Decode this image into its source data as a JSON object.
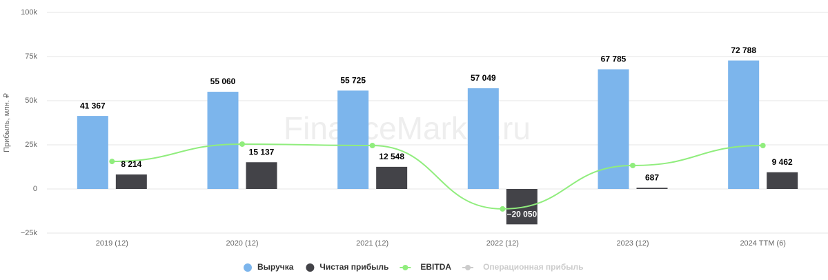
{
  "chart_data": {
    "type": "bar",
    "y_axis_label": "Прибыль, млн. ₽",
    "watermark": "FinanceMarker.ru",
    "categories": [
      "2019 (12)",
      "2020 (12)",
      "2021 (12)",
      "2022 (12)",
      "2023 (12)",
      "2024 TTM (6)"
    ],
    "ylim": [
      -25000,
      100000
    ],
    "yticks": [
      {
        "value": -25000,
        "label": "−25k"
      },
      0,
      {
        "value": 25000,
        "label": "25k"
      },
      {
        "value": 50000,
        "label": "50k"
      },
      {
        "value": 75000,
        "label": "75k"
      },
      {
        "value": 100000,
        "label": "100k"
      }
    ],
    "grid": true,
    "series": [
      {
        "name": "Выручка",
        "type": "bar",
        "color": "#7cb5ec",
        "values": [
          41367,
          55060,
          55725,
          57049,
          67785,
          72788
        ],
        "value_labels": [
          "41 367",
          "55 060",
          "55 725",
          "57 049",
          "67 785",
          "72 788"
        ]
      },
      {
        "name": "Чистая прибыль",
        "type": "bar",
        "color": "#434348",
        "values": [
          8214,
          15137,
          12548,
          -20050,
          687,
          9462
        ],
        "value_labels": [
          "8 214",
          "15 137",
          "12 548",
          "−20 050",
          "687",
          "9 462"
        ]
      },
      {
        "name": "EBITDA",
        "type": "line",
        "color": "#90ed7d",
        "values": [
          15600,
          25400,
          24600,
          -11300,
          13300,
          24600
        ]
      },
      {
        "name": "Операционная прибыль",
        "type": "line",
        "color": "#cccccc",
        "visible": false,
        "values": [
          null,
          null,
          null,
          null,
          null,
          null
        ]
      }
    ]
  }
}
